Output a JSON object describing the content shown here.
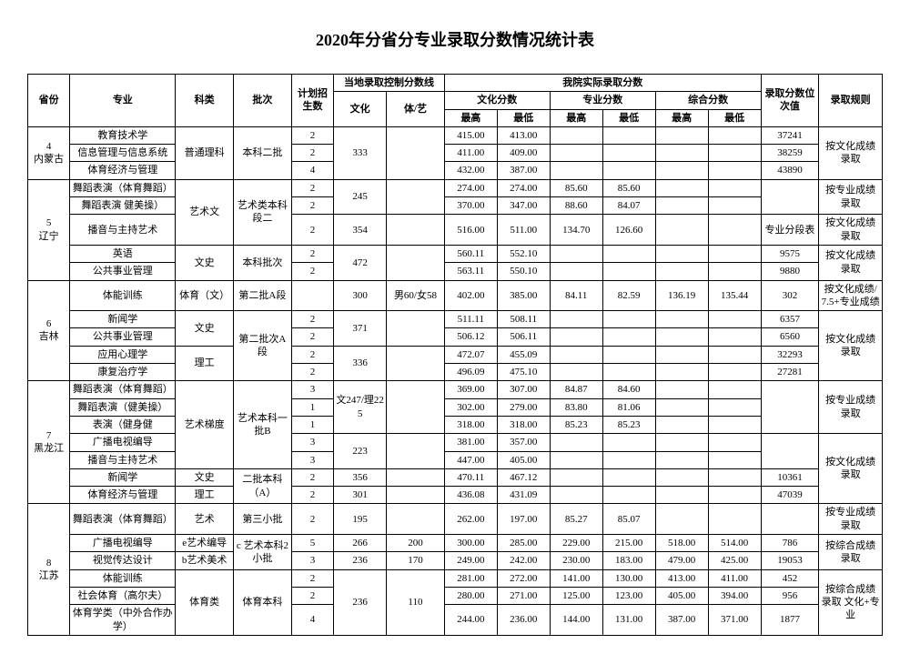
{
  "title": "2020年分省分专业录取分数情况统计表",
  "headers": {
    "province": "省份",
    "major": "专业",
    "subject": "科类",
    "batch": "批次",
    "plan": "计划招生数",
    "local_line": "当地录取控制分数线",
    "culture": "文化",
    "art_pe": "体/艺",
    "our_score": "我院实际录取分数",
    "culture_score": "文化分数",
    "major_score": "专业分数",
    "composite_score": "综合分数",
    "high": "最高",
    "low": "最低",
    "rank": "录取分数位次值",
    "rule": "录取规则"
  },
  "provinces": [
    {
      "idx": "4",
      "name": "内蒙古",
      "rows": [
        {
          "major": "教育技术学",
          "subject": "普通理科",
          "batch": "本科二批",
          "plan": "2",
          "wh": "333",
          "ty": "",
          "chigh": "415.00",
          "clow": "413.00",
          "mhigh": "",
          "mlow": "",
          "zhigh": "",
          "zlow": "",
          "rank": "37241",
          "rule": "按文化成绩录取"
        },
        {
          "major": "信息管理与信息系统",
          "plan": "2",
          "chigh": "411.00",
          "clow": "409.00",
          "rank": "38259"
        },
        {
          "major": "体育经济与管理",
          "plan": "4",
          "chigh": "432.00",
          "clow": "387.00",
          "rank": "43890"
        }
      ]
    },
    {
      "idx": "5",
      "name": "辽宁",
      "rows": [
        {
          "major": "舞蹈表演（体育舞蹈）",
          "subject": "艺术文",
          "batch": "艺术类本科段二",
          "plan": "2",
          "wh": "245",
          "ty": "",
          "chigh": "274.00",
          "clow": "274.00",
          "mhigh": "85.60",
          "mlow": "85.60",
          "zhigh": "",
          "zlow": "",
          "rank": "",
          "rule": "按专业成绩录取"
        },
        {
          "major": "舞蹈表演 健美操）",
          "plan": "2",
          "chigh": "370.00",
          "clow": "347.00",
          "mhigh": "88.60",
          "mlow": "84.07",
          "rank": ""
        },
        {
          "major": "播音与主持艺术",
          "plan": "2",
          "wh": "354",
          "chigh": "516.00",
          "clow": "511.00",
          "mhigh": "134.70",
          "mlow": "126.60",
          "rank": "专业分段表",
          "rule": "按文化成绩录取"
        },
        {
          "major": "英语",
          "subject": "文史",
          "batch": "本科批次",
          "plan": "2",
          "wh": "472",
          "chigh": "560.11",
          "clow": "552.10",
          "rank": "9575",
          "rule": "按文化成绩录取"
        },
        {
          "major": "公共事业管理",
          "plan": "2",
          "chigh": "563.11",
          "clow": "550.10",
          "rank": "9880"
        }
      ]
    },
    {
      "idx": "6",
      "name": "吉林",
      "rows": [
        {
          "major": "体能训练",
          "subject": "体育（文）",
          "batch": "第二批A段",
          "plan": "",
          "wh": "300",
          "ty": "男60/女58",
          "chigh": "402.00",
          "clow": "385.00",
          "mhigh": "84.11",
          "mlow": "82.59",
          "zhigh": "136.19",
          "zlow": "135.44",
          "rank": "302",
          "rule": "按文化成绩/7.5+专业成绩"
        },
        {
          "major": "新闻学",
          "subject": "文史",
          "batch": "第二批次A段",
          "plan": "2",
          "wh": "371",
          "chigh": "511.11",
          "clow": "508.11",
          "rank": "6357",
          "rule": "按文化成绩录取"
        },
        {
          "major": "公共事业管理",
          "plan": "2",
          "chigh": "506.12",
          "clow": "506.11",
          "rank": "6560"
        },
        {
          "major": "应用心理学",
          "subject": "理工",
          "plan": "2",
          "wh": "336",
          "chigh": "472.07",
          "clow": "455.09",
          "rank": "32293"
        },
        {
          "major": "康复治疗学",
          "plan": "2",
          "chigh": "496.09",
          "clow": "475.10",
          "rank": "27281"
        }
      ]
    },
    {
      "idx": "7",
      "name": "黑龙江",
      "rows": [
        {
          "major": "舞蹈表演（体育舞蹈）",
          "subject": "艺术梯度",
          "batch": "艺术本科一批B",
          "plan": "3",
          "wh": "文247/理225",
          "chigh": "369.00",
          "clow": "307.00",
          "mhigh": "84.87",
          "mlow": "84.60",
          "rank": "",
          "rule": "按专业成绩录取"
        },
        {
          "major": "舞蹈表演（健美操）",
          "plan": "1",
          "chigh": "302.00",
          "clow": "279.00",
          "mhigh": "83.80",
          "mlow": "81.06",
          "rank": ""
        },
        {
          "major": "表演（健身健",
          "plan": "1",
          "chigh": "318.00",
          "clow": "318.00",
          "mhigh": "85.23",
          "mlow": "85.23",
          "rank": ""
        },
        {
          "major": "广播电视编导",
          "plan": "3",
          "wh": "223",
          "chigh": "381.00",
          "clow": "357.00",
          "rank": "",
          "rule": "按文化成绩录取"
        },
        {
          "major": "播音与主持艺术",
          "plan": "3",
          "chigh": "447.00",
          "clow": "405.00",
          "rank": ""
        },
        {
          "major": "新闻学",
          "subject": "文史",
          "batch": "二批本科（A）",
          "plan": "2",
          "wh": "356",
          "chigh": "470.11",
          "clow": "467.12",
          "rank": "10361"
        },
        {
          "major": "体育经济与管理",
          "subject": "理工",
          "plan": "2",
          "wh": "301",
          "chigh": "436.08",
          "clow": "431.09",
          "rank": "47039"
        }
      ]
    },
    {
      "idx": "8",
      "name": "江苏",
      "rows": [
        {
          "major": "舞蹈表演（体育舞蹈）",
          "subject": "艺术",
          "batch": "第三小批",
          "plan": "2",
          "wh": "195",
          "chigh": "262.00",
          "clow": "197.00",
          "mhigh": "85.27",
          "mlow": "85.07",
          "rank": "",
          "rule": "按专业成绩录取"
        },
        {
          "major": "广播电视编导",
          "subject": "e艺术编导",
          "batch": "c 艺术本科2小批",
          "plan": "5",
          "wh": "266",
          "ty": "200",
          "chigh": "300.00",
          "clow": "285.00",
          "mhigh": "229.00",
          "mlow": "215.00",
          "zhigh": "518.00",
          "zlow": "514.00",
          "rank": "786",
          "rule": "按综合成绩录取"
        },
        {
          "major": "视觉传达设计",
          "subject": "b艺术美术",
          "plan": "3",
          "wh": "236",
          "ty": "170",
          "chigh": "249.00",
          "clow": "242.00",
          "mhigh": "230.00",
          "mlow": "183.00",
          "zhigh": "479.00",
          "zlow": "425.00",
          "rank": "19053"
        },
        {
          "major": "体能训练",
          "subject": "体育类",
          "batch": "体育本科",
          "plan": "2",
          "wh": "236",
          "ty": "110",
          "chigh": "281.00",
          "clow": "272.00",
          "mhigh": "141.00",
          "mlow": "130.00",
          "zhigh": "413.00",
          "zlow": "411.00",
          "rank": "452",
          "rule": "按综合成绩录取 文化+专业"
        },
        {
          "major": "社会体育（高尔夫）",
          "plan": "2",
          "chigh": "280.00",
          "clow": "271.00",
          "mhigh": "125.00",
          "mlow": "123.00",
          "zhigh": "405.00",
          "zlow": "394.00",
          "rank": "956"
        },
        {
          "major": "体育学类（中外合作办学）",
          "plan": "4",
          "chigh": "244.00",
          "clow": "236.00",
          "mhigh": "144.00",
          "mlow": "131.00",
          "zhigh": "387.00",
          "zlow": "371.00",
          "rank": "1877"
        }
      ]
    }
  ]
}
